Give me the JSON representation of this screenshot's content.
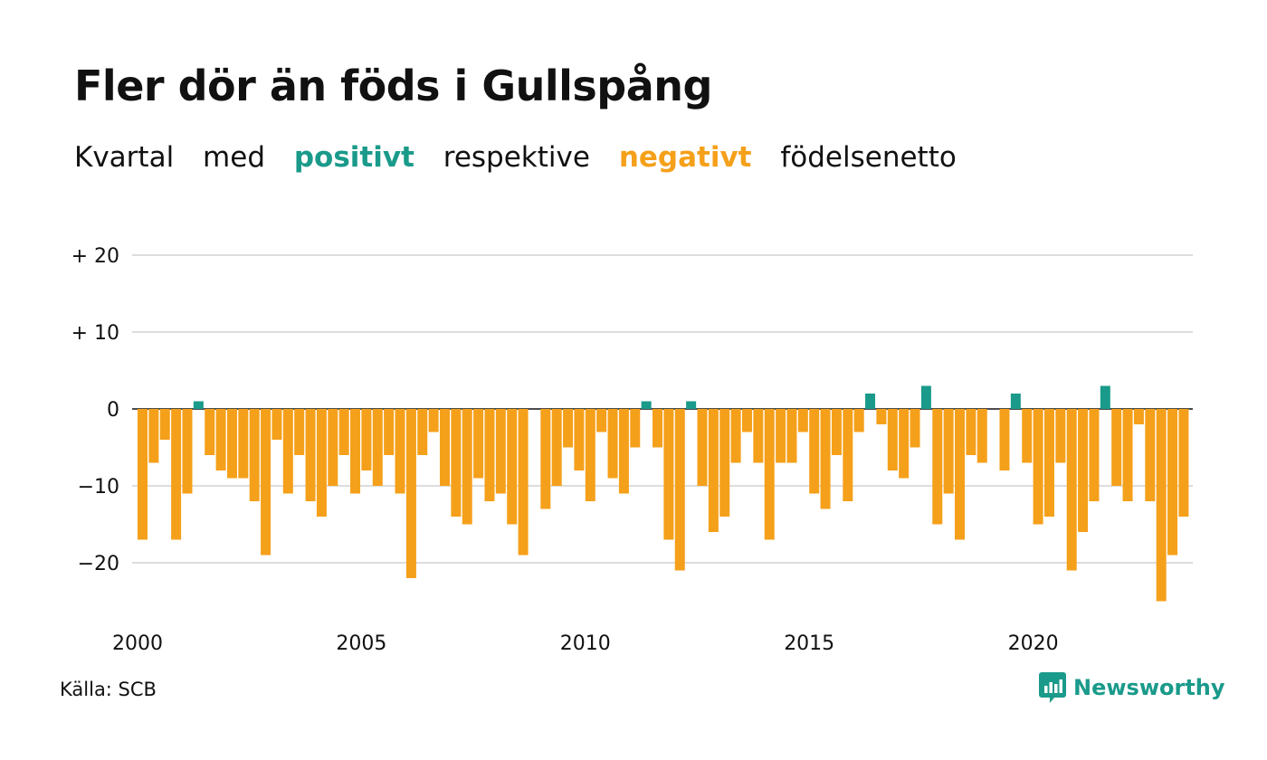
{
  "title": "Fler dör än föds i Gullspång",
  "subtitle": {
    "part1": "Kvartal",
    "part2": "med",
    "positive": "positivt",
    "part3": "respektive",
    "negative": "negativt",
    "part4": "födelsenetto"
  },
  "source": "Källa: SCB",
  "logo_text": "Newsworthy",
  "colors": {
    "positive": "#1a9a8a",
    "negative": "#f5a01a",
    "grid": "#dddddd"
  },
  "chart_data": {
    "type": "bar",
    "ylim": [
      -27,
      22
    ],
    "yticks": [
      {
        "value": 20,
        "label": "+ 20"
      },
      {
        "value": 10,
        "label": "+ 10"
      },
      {
        "value": 0,
        "label": "0"
      },
      {
        "value": -10,
        "label": "−10"
      },
      {
        "value": -20,
        "label": "−20"
      }
    ],
    "xticks": [
      {
        "year": 2000,
        "label": "2000"
      },
      {
        "year": 2005,
        "label": "2005"
      },
      {
        "year": 2010,
        "label": "2010"
      },
      {
        "year": 2015,
        "label": "2015"
      },
      {
        "year": 2020,
        "label": "2020"
      }
    ],
    "start": "2000 Q1",
    "values": [
      -17,
      -7,
      -4,
      -17,
      -11,
      1,
      -6,
      -8,
      -9,
      -9,
      -12,
      -19,
      -4,
      -11,
      -6,
      -12,
      -14,
      -10,
      -6,
      -11,
      -8,
      -10,
      -6,
      -11,
      -22,
      -6,
      -3,
      -10,
      -14,
      -15,
      -9,
      -12,
      -11,
      -15,
      -19,
      0,
      -13,
      -10,
      -5,
      -8,
      -12,
      -3,
      -9,
      -11,
      -5,
      1,
      -5,
      -17,
      -21,
      1,
      -10,
      -16,
      -14,
      -7,
      -3,
      -7,
      -17,
      -7,
      -7,
      -3,
      -11,
      -13,
      -6,
      -12,
      -3,
      2,
      -2,
      -8,
      -9,
      -5,
      3,
      -15,
      -11,
      -17,
      -6,
      -7,
      0,
      -8,
      2,
      -7,
      -15,
      -14,
      -7,
      -21,
      -16,
      -12,
      3,
      -10,
      -12,
      -2,
      -12,
      -25,
      -19,
      -14
    ]
  }
}
